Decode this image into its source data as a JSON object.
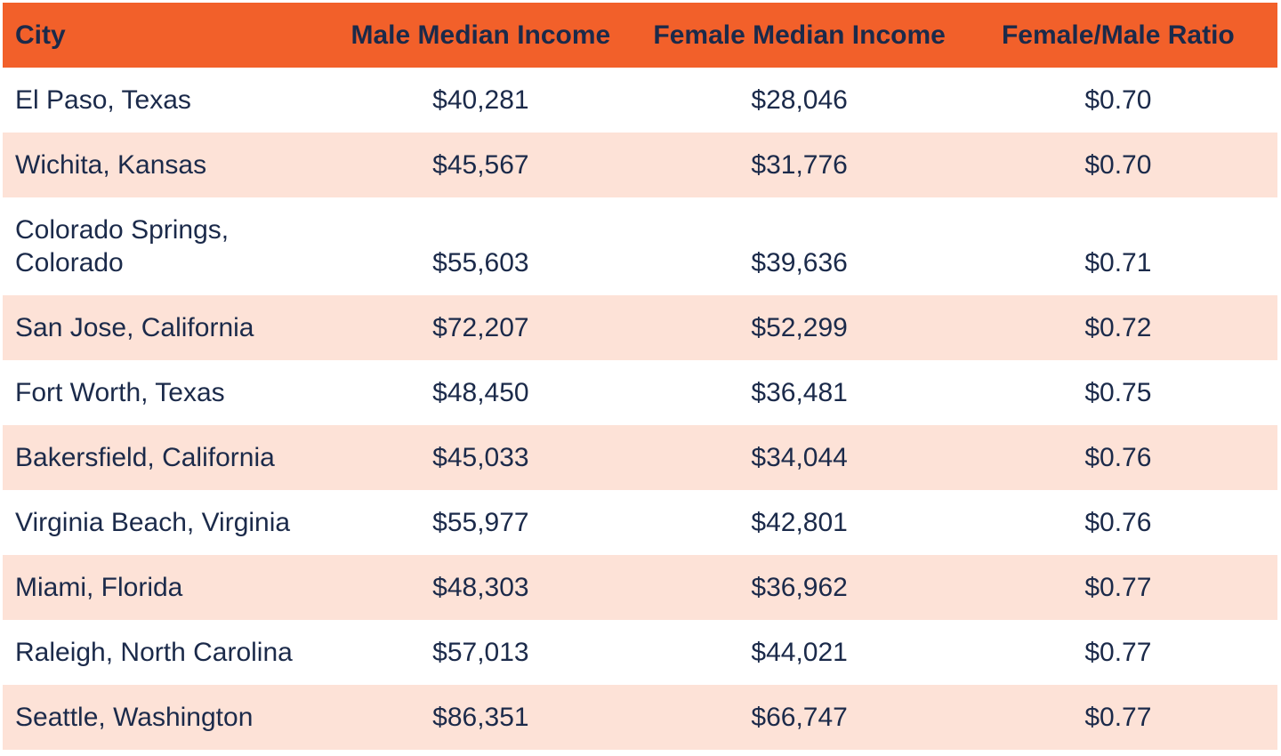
{
  "table": {
    "columns": [
      "City",
      "Male Median Income",
      "Female Median Income",
      "Female/Male Ratio"
    ],
    "rows": [
      {
        "city": "El Paso, Texas",
        "male_income": "$40,281",
        "female_income": "$28,046",
        "ratio": "$0.70"
      },
      {
        "city": "Wichita, Kansas",
        "male_income": "$45,567",
        "female_income": "$31,776",
        "ratio": "$0.70"
      },
      {
        "city": "Colorado Springs, Colorado",
        "male_income": "$55,603",
        "female_income": "$39,636",
        "ratio": "$0.71"
      },
      {
        "city": "San Jose, California",
        "male_income": "$72,207",
        "female_income": "$52,299",
        "ratio": "$0.72"
      },
      {
        "city": "Fort Worth, Texas",
        "male_income": "$48,450",
        "female_income": "$36,481",
        "ratio": "$0.75"
      },
      {
        "city": "Bakersfield, California",
        "male_income": "$45,033",
        "female_income": "$34,044",
        "ratio": "$0.76"
      },
      {
        "city": "Virginia Beach, Virginia",
        "male_income": "$55,977",
        "female_income": "$42,801",
        "ratio": "$0.76"
      },
      {
        "city": "Miami, Florida",
        "male_income": "$48,303",
        "female_income": "$36,962",
        "ratio": "$0.77"
      },
      {
        "city": "Raleigh, North Carolina",
        "male_income": "$57,013",
        "female_income": "$44,021",
        "ratio": "$0.77"
      },
      {
        "city": "Seattle, Washington",
        "male_income": "$86,351",
        "female_income": "$66,747",
        "ratio": "$0.77"
      }
    ]
  },
  "colors": {
    "header_bg": "#F2602A",
    "row_bg": "#FFFFFF",
    "row_alt_bg": "#FDE2D7",
    "text": "#1B2A4A"
  },
  "chart_data": {
    "type": "table",
    "title": "",
    "columns": [
      "City",
      "Male Median Income",
      "Female Median Income",
      "Female/Male Ratio"
    ],
    "rows": [
      [
        "El Paso, Texas",
        40281,
        28046,
        0.7
      ],
      [
        "Wichita, Kansas",
        45567,
        31776,
        0.7
      ],
      [
        "Colorado Springs, Colorado",
        55603,
        39636,
        0.71
      ],
      [
        "San Jose, California",
        72207,
        52299,
        0.72
      ],
      [
        "Fort Worth, Texas",
        48450,
        36481,
        0.75
      ],
      [
        "Bakersfield, California",
        45033,
        34044,
        0.76
      ],
      [
        "Virginia Beach, Virginia",
        55977,
        42801,
        0.76
      ],
      [
        "Miami, Florida",
        48303,
        36962,
        0.77
      ],
      [
        "Raleigh, North Carolina",
        57013,
        44021,
        0.77
      ],
      [
        "Seattle, Washington",
        86351,
        66747,
        0.77
      ]
    ],
    "layout": {
      "header_style": "orange-band",
      "row_striping": "white-pink-alternating",
      "city_column_align": "left",
      "value_columns_align": "center"
    }
  }
}
